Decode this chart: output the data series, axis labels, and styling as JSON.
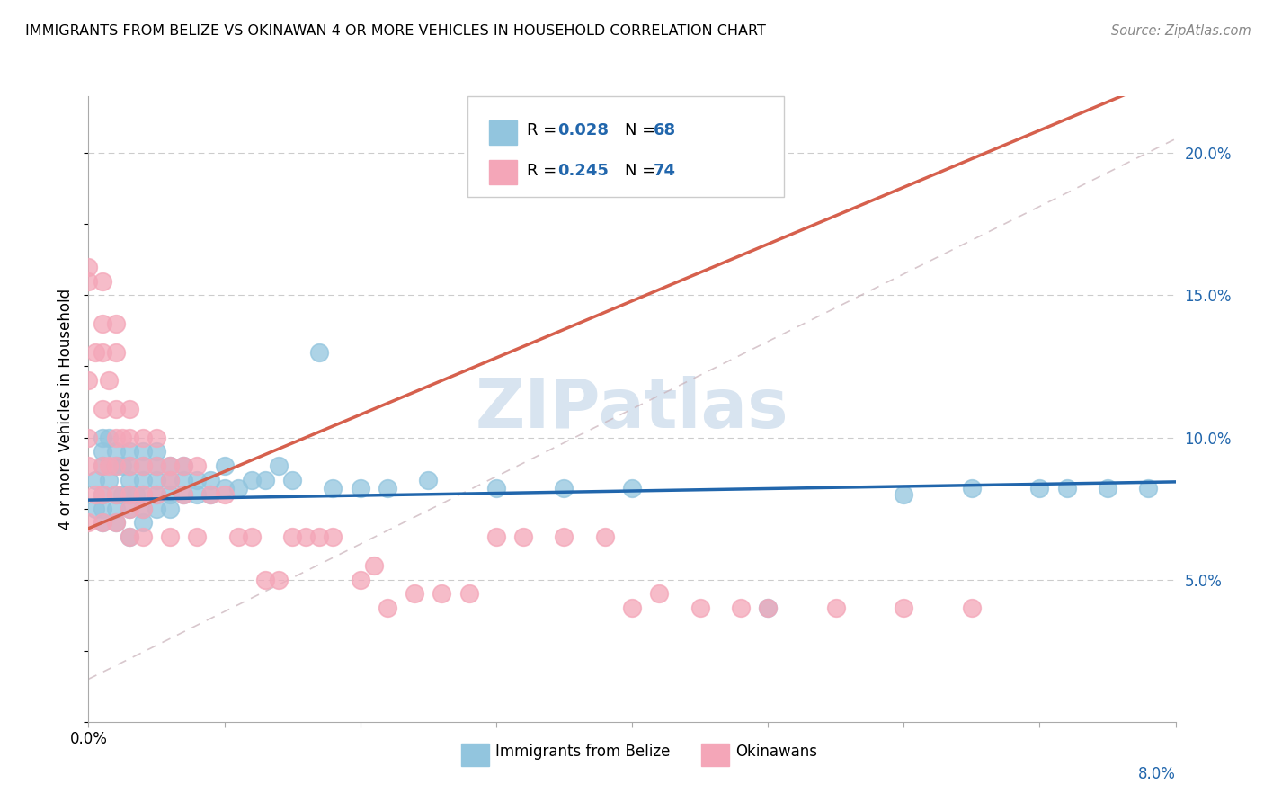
{
  "title": "IMMIGRANTS FROM BELIZE VS OKINAWAN 4 OR MORE VEHICLES IN HOUSEHOLD CORRELATION CHART",
  "source": "Source: ZipAtlas.com",
  "ylabel": "4 or more Vehicles in Household",
  "xlim": [
    0.0,
    0.08
  ],
  "ylim": [
    0.0,
    0.22
  ],
  "belize_color": "#92c5de",
  "okinawa_color": "#f4a6b8",
  "belize_line_color": "#2166ac",
  "okinawa_line_color": "#d6604d",
  "watermark_color": "#d8e4f0",
  "grid_color": "#cccccc",
  "belize_x": [
    0.0005,
    0.0005,
    0.001,
    0.001,
    0.001,
    0.001,
    0.001,
    0.001,
    0.0015,
    0.0015,
    0.002,
    0.002,
    0.002,
    0.002,
    0.002,
    0.0025,
    0.0025,
    0.003,
    0.003,
    0.003,
    0.003,
    0.003,
    0.003,
    0.0035,
    0.004,
    0.004,
    0.004,
    0.004,
    0.004,
    0.004,
    0.005,
    0.005,
    0.005,
    0.005,
    0.005,
    0.006,
    0.006,
    0.006,
    0.006,
    0.007,
    0.007,
    0.007,
    0.008,
    0.008,
    0.009,
    0.009,
    0.01,
    0.01,
    0.011,
    0.012,
    0.013,
    0.014,
    0.015,
    0.017,
    0.018,
    0.02,
    0.022,
    0.025,
    0.03,
    0.035,
    0.04,
    0.05,
    0.06,
    0.065,
    0.07,
    0.072,
    0.075,
    0.078
  ],
  "belize_y": [
    0.075,
    0.085,
    0.07,
    0.08,
    0.09,
    0.095,
    0.1,
    0.075,
    0.085,
    0.1,
    0.07,
    0.08,
    0.09,
    0.095,
    0.075,
    0.08,
    0.09,
    0.065,
    0.075,
    0.08,
    0.085,
    0.09,
    0.095,
    0.08,
    0.07,
    0.075,
    0.08,
    0.085,
    0.09,
    0.095,
    0.08,
    0.085,
    0.09,
    0.095,
    0.075,
    0.08,
    0.085,
    0.09,
    0.075,
    0.08,
    0.085,
    0.09,
    0.08,
    0.085,
    0.08,
    0.085,
    0.082,
    0.09,
    0.082,
    0.085,
    0.085,
    0.09,
    0.085,
    0.13,
    0.082,
    0.082,
    0.082,
    0.085,
    0.082,
    0.082,
    0.082,
    0.04,
    0.08,
    0.082,
    0.082,
    0.082,
    0.082,
    0.082
  ],
  "okinawa_x": [
    0.0,
    0.0,
    0.0,
    0.0,
    0.0,
    0.0,
    0.0005,
    0.0005,
    0.001,
    0.001,
    0.001,
    0.001,
    0.001,
    0.001,
    0.001,
    0.0015,
    0.0015,
    0.002,
    0.002,
    0.002,
    0.002,
    0.002,
    0.002,
    0.002,
    0.0025,
    0.003,
    0.003,
    0.003,
    0.003,
    0.003,
    0.003,
    0.004,
    0.004,
    0.004,
    0.004,
    0.004,
    0.005,
    0.005,
    0.005,
    0.006,
    0.006,
    0.006,
    0.007,
    0.007,
    0.008,
    0.008,
    0.009,
    0.01,
    0.011,
    0.012,
    0.013,
    0.014,
    0.015,
    0.016,
    0.017,
    0.018,
    0.02,
    0.021,
    0.022,
    0.024,
    0.026,
    0.028,
    0.03,
    0.032,
    0.035,
    0.038,
    0.04,
    0.042,
    0.045,
    0.048,
    0.05,
    0.055,
    0.06,
    0.065
  ],
  "okinawa_y": [
    0.07,
    0.09,
    0.1,
    0.12,
    0.155,
    0.16,
    0.08,
    0.13,
    0.07,
    0.08,
    0.09,
    0.11,
    0.13,
    0.14,
    0.155,
    0.09,
    0.12,
    0.07,
    0.08,
    0.09,
    0.1,
    0.11,
    0.13,
    0.14,
    0.1,
    0.08,
    0.09,
    0.1,
    0.11,
    0.075,
    0.065,
    0.08,
    0.09,
    0.1,
    0.075,
    0.065,
    0.09,
    0.1,
    0.08,
    0.09,
    0.085,
    0.065,
    0.09,
    0.08,
    0.09,
    0.065,
    0.08,
    0.08,
    0.065,
    0.065,
    0.05,
    0.05,
    0.065,
    0.065,
    0.065,
    0.065,
    0.05,
    0.055,
    0.04,
    0.045,
    0.045,
    0.045,
    0.065,
    0.065,
    0.065,
    0.065,
    0.04,
    0.045,
    0.04,
    0.04,
    0.04,
    0.04,
    0.04,
    0.04
  ]
}
